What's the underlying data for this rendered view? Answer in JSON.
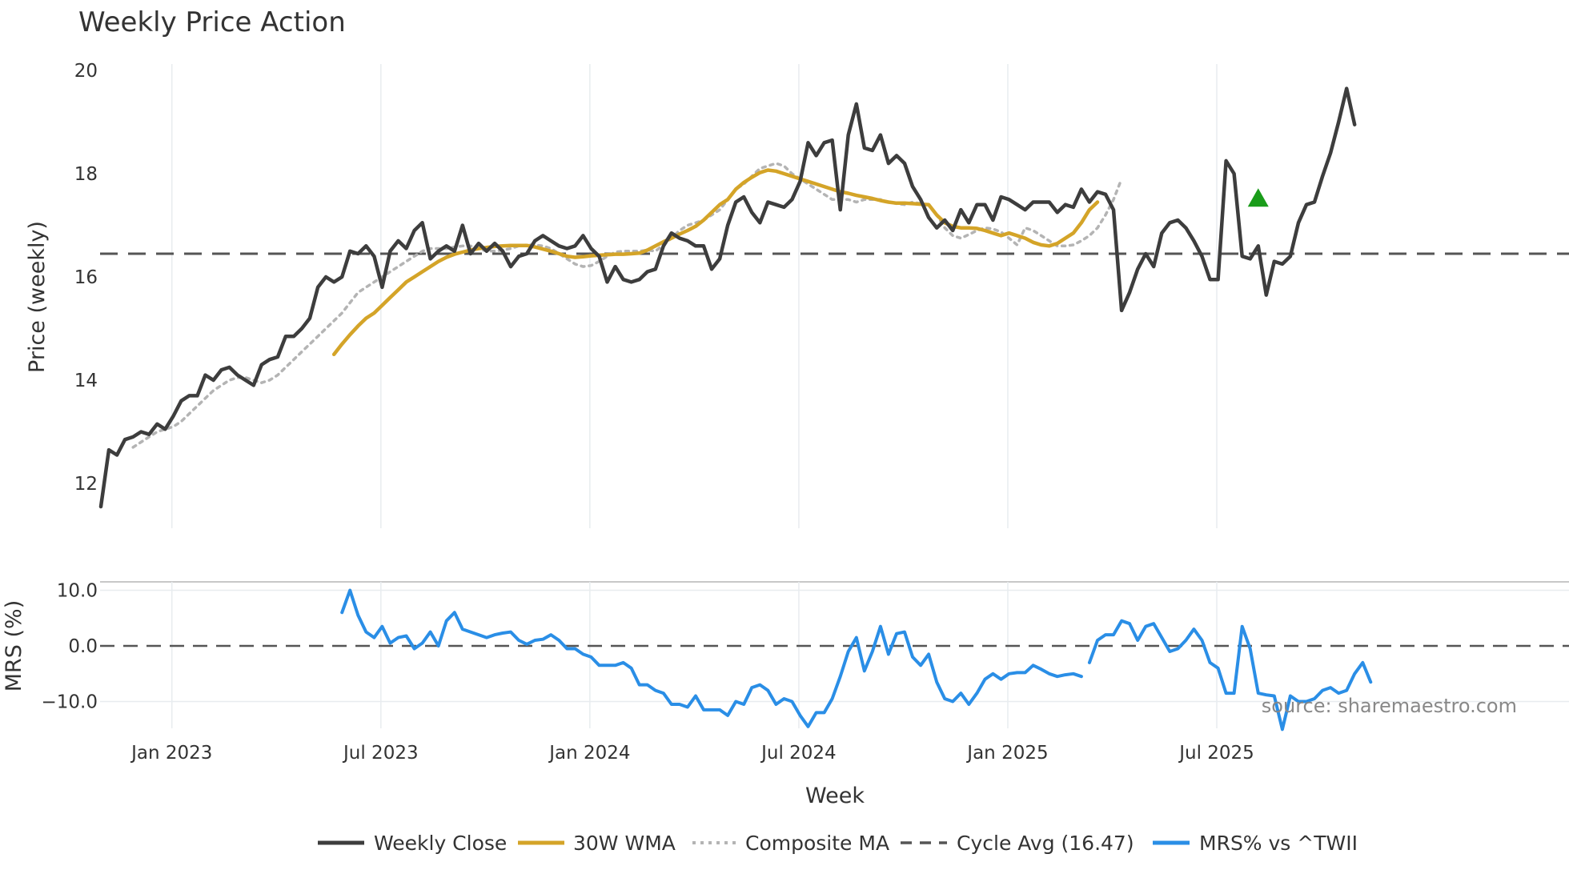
{
  "chart_data": [
    {
      "type": "line",
      "title": "Weekly Price Action",
      "ylabel": "Price (weekly)",
      "xlabel": "",
      "ylim": [
        11.6,
        20.2
      ],
      "yticks": [
        12,
        14,
        16,
        18,
        20
      ],
      "ytick_labels": [
        "12",
        "14",
        "16",
        "18",
        "20"
      ],
      "xtick_positions": [
        2023.0,
        2023.5,
        2024.0,
        2024.5,
        2025.0,
        2025.5
      ],
      "grid": true,
      "weeks_start": 2022.83,
      "week_step": 0.01923,
      "cycle_avg": 16.47,
      "signal_marker": {
        "label": "buy-signal",
        "week_index": 144,
        "value": 17.5,
        "color": "#1a9c1a"
      },
      "series": [
        {
          "name": "Weekly Close",
          "color": "#3d3d3d",
          "values": [
            11.55,
            12.65,
            12.55,
            12.85,
            12.9,
            13.0,
            12.95,
            13.15,
            13.05,
            13.3,
            13.6,
            13.7,
            13.7,
            14.1,
            14.0,
            14.2,
            14.25,
            14.1,
            14.0,
            13.9,
            14.3,
            14.4,
            14.45,
            14.85,
            14.85,
            15.0,
            15.2,
            15.8,
            16.0,
            15.9,
            16.0,
            16.5,
            16.45,
            16.6,
            16.4,
            15.8,
            16.5,
            16.7,
            16.55,
            16.9,
            17.05,
            16.35,
            16.5,
            16.6,
            16.5,
            17.0,
            16.45,
            16.65,
            16.5,
            16.65,
            16.5,
            16.2,
            16.4,
            16.45,
            16.7,
            16.8,
            16.7,
            16.6,
            16.55,
            16.6,
            16.8,
            16.55,
            16.4,
            15.9,
            16.2,
            15.95,
            15.9,
            15.95,
            16.1,
            16.15,
            16.6,
            16.85,
            16.75,
            16.7,
            16.6,
            16.6,
            16.15,
            16.35,
            17.0,
            17.45,
            17.55,
            17.25,
            17.05,
            17.45,
            17.4,
            17.35,
            17.5,
            17.85,
            18.6,
            18.35,
            18.6,
            18.65,
            17.3,
            18.75,
            19.35,
            18.5,
            18.45,
            18.75,
            18.2,
            18.35,
            18.2,
            17.75,
            17.5,
            17.15,
            16.95,
            17.1,
            16.9,
            17.3,
            17.05,
            17.4,
            17.4,
            17.1,
            17.55,
            17.5,
            17.4,
            17.3,
            17.45,
            17.45,
            17.45,
            17.25,
            17.4,
            17.35,
            17.7,
            17.45,
            17.65,
            17.6,
            17.3,
            15.35,
            15.7,
            16.15,
            16.45,
            16.2,
            16.85,
            17.05,
            17.1,
            16.95,
            16.7,
            16.4,
            15.95,
            15.95,
            18.25,
            18.0,
            16.4,
            16.35,
            16.6,
            15.65,
            16.3,
            16.25,
            16.4,
            17.05,
            17.4,
            17.45,
            17.95,
            18.4,
            19.0,
            19.65,
            18.95
          ]
        },
        {
          "name": "30W WMA",
          "color": "#d4a428",
          "start_index": 29,
          "values": [
            14.5,
            14.7,
            14.88,
            15.05,
            15.2,
            15.3,
            15.45,
            15.6,
            15.75,
            15.9,
            16.0,
            16.1,
            16.2,
            16.3,
            16.38,
            16.44,
            16.48,
            16.52,
            16.55,
            16.57,
            16.59,
            16.6,
            16.61,
            16.61,
            16.61,
            16.58,
            16.54,
            16.5,
            16.45,
            16.4,
            16.38,
            16.39,
            16.41,
            16.42,
            16.43,
            16.44,
            16.44,
            16.45,
            16.46,
            16.52,
            16.6,
            16.68,
            16.75,
            16.83,
            16.9,
            16.98,
            17.1,
            17.25,
            17.4,
            17.5,
            17.7,
            17.83,
            17.93,
            18.02,
            18.07,
            18.05,
            18.0,
            17.95,
            17.9,
            17.85,
            17.8,
            17.75,
            17.7,
            17.65,
            17.62,
            17.58,
            17.55,
            17.52,
            17.48,
            17.45,
            17.43,
            17.43,
            17.42,
            17.41,
            17.4,
            17.2,
            17.05,
            16.98,
            16.95,
            16.95,
            16.94,
            16.9,
            16.85,
            16.8,
            16.85,
            16.8,
            16.75,
            16.67,
            16.62,
            16.6,
            16.65,
            16.75,
            16.85,
            17.05,
            17.3,
            17.45
          ]
        },
        {
          "name": "Composite MA",
          "color": "#b4b4b4",
          "start_index": 4,
          "values": [
            12.7,
            12.8,
            12.9,
            13.0,
            13.05,
            13.1,
            13.2,
            13.35,
            13.5,
            13.65,
            13.8,
            13.9,
            14.0,
            14.05,
            14.05,
            14.0,
            13.95,
            14.0,
            14.1,
            14.25,
            14.4,
            14.55,
            14.7,
            14.85,
            15.0,
            15.15,
            15.3,
            15.5,
            15.7,
            15.8,
            15.9,
            16.0,
            16.1,
            16.2,
            16.3,
            16.4,
            16.5,
            16.55,
            16.55,
            16.55,
            16.58,
            16.6,
            16.6,
            16.55,
            16.5,
            16.5,
            16.52,
            16.55,
            16.6,
            16.62,
            16.62,
            16.6,
            16.55,
            16.45,
            16.35,
            16.25,
            16.2,
            16.22,
            16.3,
            16.4,
            16.48,
            16.5,
            16.5,
            16.5,
            16.52,
            16.5,
            16.62,
            16.75,
            16.9,
            17.0,
            17.05,
            17.1,
            17.2,
            17.3,
            17.5,
            17.7,
            17.8,
            17.95,
            18.1,
            18.15,
            18.2,
            18.15,
            18.0,
            17.9,
            17.8,
            17.7,
            17.6,
            17.5,
            17.5,
            17.5,
            17.45,
            17.5,
            17.5,
            17.5,
            17.45,
            17.42,
            17.4,
            17.45,
            17.42,
            17.4,
            17.2,
            16.95,
            16.8,
            16.75,
            16.82,
            16.9,
            16.95,
            16.93,
            16.87,
            16.75,
            16.62,
            16.95,
            16.9,
            16.8,
            16.7,
            16.6,
            16.6,
            16.62,
            16.7,
            16.8,
            16.95,
            17.2,
            17.5,
            17.9
          ]
        }
      ]
    },
    {
      "type": "line",
      "title": "",
      "ylabel": "MRS (%)",
      "xlabel": "Week",
      "ylim": [
        -16,
        12
      ],
      "yticks": [
        10,
        0,
        -10
      ],
      "ytick_labels": [
        "10.0",
        "0.0",
        "−10.0"
      ],
      "xtick_positions": [
        2023.0,
        2023.5,
        2024.0,
        2024.5,
        2025.0,
        2025.5
      ],
      "xtick_labels": [
        "Jan 2023",
        "Jul 2023",
        "Jan 2024",
        "Jul 2024",
        "Jan 2025",
        "Jul 2025"
      ],
      "grid": true,
      "zero_line": 0,
      "series": [
        {
          "name": "MRS% vs ^TWII",
          "color": "#2a8ee6",
          "start_index": 30,
          "gap_after_index": 122,
          "values": [
            6,
            10,
            5.5,
            2.5,
            1.5,
            3.5,
            0.5,
            1.5,
            1.8,
            -0.5,
            0.5,
            2.5,
            0,
            4.5,
            6,
            3,
            2.5,
            2,
            1.5,
            2,
            2.3,
            2.5,
            1,
            0.3,
            1,
            1.2,
            2,
            1,
            -0.5,
            -0.5,
            -1.5,
            -2,
            -3.5,
            -3.5,
            -3.5,
            -3,
            -4,
            -7,
            -7,
            -8,
            -8.5,
            -10.5,
            -10.5,
            -11,
            -9,
            -11.5,
            -11.5,
            -11.5,
            -12.5,
            -10,
            -10.5,
            -7.5,
            -7,
            -8,
            -10.5,
            -9.5,
            -10,
            -12.5,
            -14.5,
            -12,
            -12,
            -9.5,
            -5.5,
            -1,
            1.5,
            -4.5,
            -1,
            3.5,
            -1.5,
            2.2,
            2.5,
            -2,
            -3.5,
            -1.5,
            -6.5,
            -9.5,
            -10,
            -8.5,
            -10.5,
            -8.5,
            -6,
            -5,
            -6,
            -5,
            -4.8,
            -4.8,
            -3.5,
            -4.2,
            -5,
            -5.5,
            -5.2,
            -5,
            -5.5,
            -3,
            1,
            2,
            2,
            4.5,
            4,
            1,
            3.5,
            4,
            1.5,
            -1,
            -0.5,
            1,
            3,
            1,
            -3,
            -4,
            -8.5,
            -8.5,
            3.5,
            -0.5,
            -8.5,
            -8.8,
            -9,
            -15,
            -9,
            -10,
            -10,
            -9.5,
            -8,
            -7.5,
            -8.5,
            -8,
            -5,
            -3,
            -6.5
          ],
          "segments": [
            [
              0,
              92
            ],
            [
              93,
              130
            ]
          ]
        }
      ],
      "legend": {
        "placement": "bottom-center",
        "entries": [
          "Weekly Close",
          "30W WMA",
          "Composite MA",
          "Cycle Avg (16.47)",
          "MRS% vs ^TWII"
        ]
      }
    }
  ],
  "source_text": "source: sharemaestro.com",
  "colors": {
    "close": "#3d3d3d",
    "wma": "#d4a428",
    "composite": "#b4b4b4",
    "cycle": "#555555",
    "mrs": "#2a8ee6",
    "grid": "#e8ecef"
  }
}
